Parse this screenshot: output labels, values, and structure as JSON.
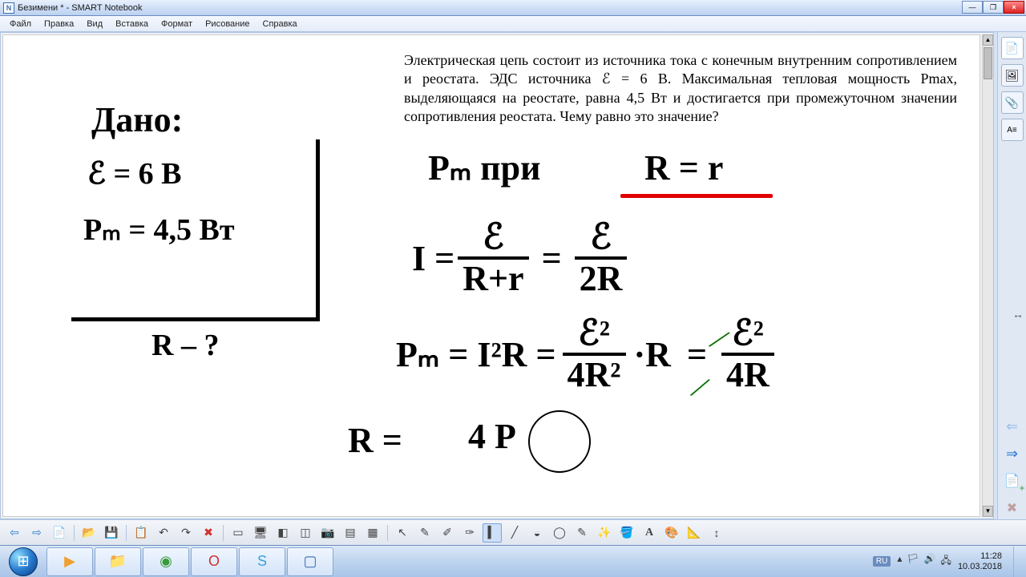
{
  "window": {
    "title": "Безимени * - SMART Notebook",
    "min_tip": "Minimize",
    "max_tip": "Maximize",
    "close_tip": "Close",
    "close_glyph": "×"
  },
  "menu": {
    "items": [
      "Файл",
      "Правка",
      "Вид",
      "Вставка",
      "Формат",
      "Рисование",
      "Справка"
    ]
  },
  "problem": {
    "text": "Электрическая цепь состоит из источника тока с конечным внутренним сопротивлением и реостата. ЭДС источника ℰ = 6 В. Максимальная тепловая мощность Pmax, выделяющаяся на реостате, равна 4,5 Вт и достигается при промежуточном значении сопротивления реостата. Чему равно это значение?"
  },
  "handwriting": {
    "given_label": "Дано:",
    "emf": "ℰ = 6 В",
    "pm": "Pₘ = 4,5 Вт",
    "find": "R – ?",
    "pm_at": "Pₘ  при",
    "R_eq_r": "R = r",
    "I_eq": "I =",
    "frac1_num": "ℰ",
    "frac1_den": "R+r",
    "equals": "=",
    "frac2_num": "ℰ",
    "frac2_den": "2R",
    "pm_eq": "Pₘ = I²R =",
    "frac3_num": "ℰ²",
    "frac3_den": "4R²",
    "dotR": "·R",
    "frac4_num": "ℰ²",
    "frac4_den": "4R",
    "R_eq": "R =",
    "fourP": "4 P",
    "underline_color": "#e00000",
    "green_cancel_color": "#0a7000"
  },
  "side_tabs": {
    "page_sorter": "page-sorter-icon",
    "gallery": "gallery-icon",
    "attachments": "attachments-icon",
    "properties": "properties-icon",
    "expand": "↔",
    "prev_page": "⇐",
    "next_page": "⇒",
    "add_page": "✚",
    "delete_page": "✖"
  },
  "toolbar": {
    "prev": "⇦",
    "next": "⇨",
    "add_page": "📄",
    "open": "📂",
    "save": "💾",
    "paste": "📋",
    "undo": "↶",
    "redo": "↷",
    "delete": "✖",
    "screen_shade": "▭",
    "full_screen": "🖥",
    "transparent": "◧",
    "dual_page": "◫",
    "capture": "📷",
    "doc_cam": "▤",
    "table": "▦",
    "select": "↖",
    "pen": "✎",
    "creative_pen": "✐",
    "calligraphy": "✑",
    "highlighter": "▍",
    "eraser": "◒",
    "line": "╱",
    "shape": "◯",
    "shape_rec": "✎",
    "magic": "✨",
    "fill": "🪣",
    "text": "A",
    "properties": "🎨",
    "measure": "📐",
    "move_toolbar": "↕"
  },
  "taskbar": {
    "apps": [
      {
        "name": "media-player",
        "glyph": "▶",
        "color": "#f0a030"
      },
      {
        "name": "explorer",
        "glyph": "📁",
        "color": "#f0c860"
      },
      {
        "name": "chrome",
        "glyph": "◉",
        "color": "#3a9a3a"
      },
      {
        "name": "opera",
        "glyph": "O",
        "color": "#d03030"
      },
      {
        "name": "skype",
        "glyph": "S",
        "color": "#3aa0e0"
      },
      {
        "name": "smart-notebook",
        "glyph": "▢",
        "color": "#3a6cb0"
      }
    ],
    "lang": "RU",
    "tray_icons": [
      "▴",
      "🏳",
      "🔊",
      "🖧"
    ],
    "time": "11:28",
    "date": "10.03.2018"
  }
}
